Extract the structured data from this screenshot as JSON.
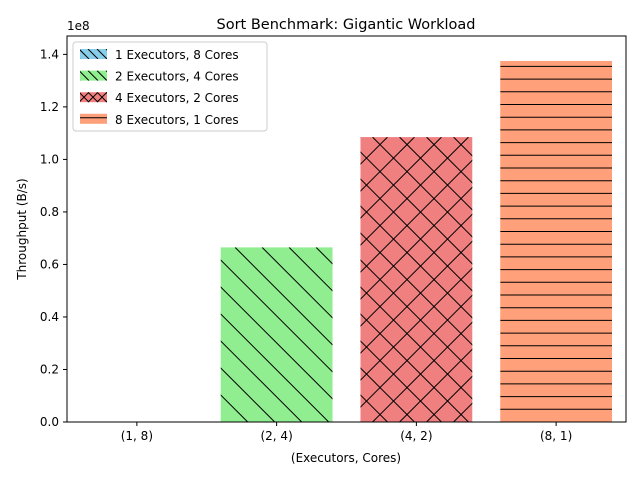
{
  "chart_data": {
    "type": "bar",
    "title": "Sort Benchmark: Gigantic Workload",
    "xlabel": "(Executors, Cores)",
    "ylabel": "Throughput (B/s)",
    "y_offset_label": "1e8",
    "y_scale": 100000000,
    "categories": [
      "(1, 8)",
      "(2, 4)",
      "(4, 2)",
      "(8, 1)"
    ],
    "values": [
      0,
      66500000,
      108500000,
      137500000
    ],
    "ylim": [
      0,
      147000000
    ],
    "yticks": [
      0,
      20000000,
      40000000,
      60000000,
      80000000,
      100000000,
      120000000,
      140000000
    ],
    "ytick_labels": [
      "0.0",
      "0.2",
      "0.4",
      "0.6",
      "0.8",
      "1.0",
      "1.2",
      "1.4"
    ],
    "legend_position": "top-left",
    "grid": false,
    "series": [
      {
        "name": "1 Executors, 8 Cores",
        "color": "#87ceeb",
        "hatch": "backslash"
      },
      {
        "name": "2 Executors, 4 Cores",
        "color": "#90ee90",
        "hatch": "backslash"
      },
      {
        "name": "4 Executors, 2 Cores",
        "color": "#f08080",
        "hatch": "cross"
      },
      {
        "name": "8 Executors, 1 Cores",
        "color": "#ffa07a",
        "hatch": "horizontal"
      }
    ]
  }
}
